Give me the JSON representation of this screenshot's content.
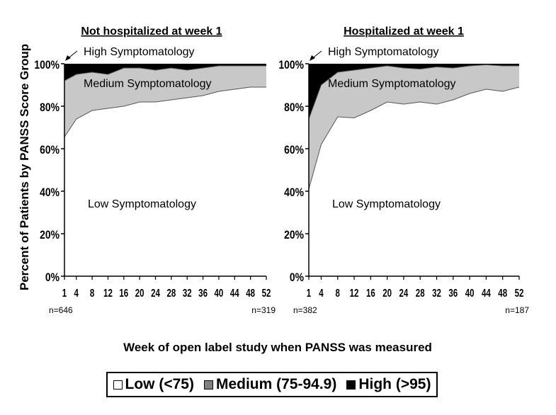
{
  "chart_data": {
    "type": "area",
    "ylabel": "Percent of Patients by PANSS Score Group",
    "xlabel": "Week of open label study when PANSS was measured",
    "x": [
      1,
      4,
      8,
      12,
      16,
      20,
      24,
      28,
      32,
      36,
      40,
      44,
      48,
      52
    ],
    "ylim": [
      0,
      100
    ],
    "yticks": [
      "0%",
      "20%",
      "40%",
      "60%",
      "80%",
      "100%"
    ],
    "legend": [
      {
        "name": "Low (<75)",
        "color": "#ffffff"
      },
      {
        "name": "Medium (75-94.9)",
        "color": "#c0c0c0"
      },
      {
        "name": "High (>95)",
        "color": "#000000"
      }
    ],
    "panels": [
      {
        "title": "Not hospitalized at week 1",
        "n_start": "n=646",
        "n_end": "n=319",
        "area_labels": {
          "high": "High Symptomatology",
          "medium": "Medium Symptomatology",
          "low": "Low Symptomatology"
        },
        "low_cum": [
          65.5,
          74,
          78,
          79,
          80,
          82,
          82,
          83,
          84,
          85,
          87,
          88,
          89,
          89
        ],
        "low_medium_cum": [
          92,
          95,
          96,
          95,
          98,
          98,
          97,
          98,
          97,
          98,
          99,
          99,
          99,
          99
        ]
      },
      {
        "title": "Hospitalized at week 1",
        "n_start": "n=382",
        "n_end": "n=187",
        "area_labels": {
          "high": "High Symptomatology",
          "medium": "Medium Symptomatology",
          "low": "Low Symptomatology"
        },
        "low_cum": [
          41,
          62,
          75,
          74.5,
          78,
          82,
          81,
          82,
          81,
          83,
          86,
          88,
          87,
          89
        ],
        "low_medium_cum": [
          74,
          90,
          96,
          97,
          98,
          99,
          98,
          97.5,
          98.5,
          98,
          99,
          99.5,
          99,
          99
        ]
      }
    ]
  }
}
